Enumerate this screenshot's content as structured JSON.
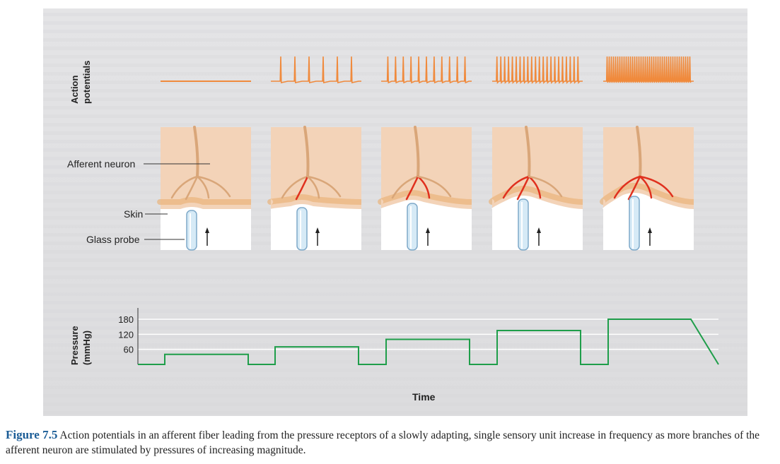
{
  "labels": {
    "action_potentials_line1": "Action",
    "action_potentials_line2": "potentials",
    "afferent_neuron": "Afferent neuron",
    "skin": "Skin",
    "glass_probe": "Glass probe",
    "pressure_line1": "Pressure",
    "pressure_line2": "(mmHg)",
    "time": "Time"
  },
  "caption": {
    "figure_number": "Figure 7.5",
    "text": "Action potentials in an afferent fiber leading from the pressure receptors of a slowly adapting, single sensory unit increase in frequency as more branches of the afferent neuron are stimulated by pressures of increasing magnitude."
  },
  "colors": {
    "action_potential": "#f08a3c",
    "pressure_trace": "#1f9e4a",
    "skin": "#f3d3b8",
    "stimulated_branch": "#e0301e"
  },
  "stimuli": [
    {
      "spike_count": 0,
      "stimulated_branches": 0
    },
    {
      "spike_count": 6,
      "stimulated_branches": 1
    },
    {
      "spike_count": 11,
      "stimulated_branches": 2
    },
    {
      "spike_count": 22,
      "stimulated_branches": 3
    },
    {
      "spike_count": 40,
      "stimulated_branches": 4
    }
  ],
  "chart_data": {
    "type": "line",
    "ylabel": "Pressure (mmHg)",
    "xlabel": "Time",
    "y_ticks": [
      "180",
      "120",
      "60"
    ],
    "y_tick_values": [
      180,
      120,
      60
    ],
    "series": [
      {
        "values": [
          0,
          40,
          0,
          70,
          0,
          100,
          0,
          135,
          0,
          180
        ]
      }
    ]
  }
}
